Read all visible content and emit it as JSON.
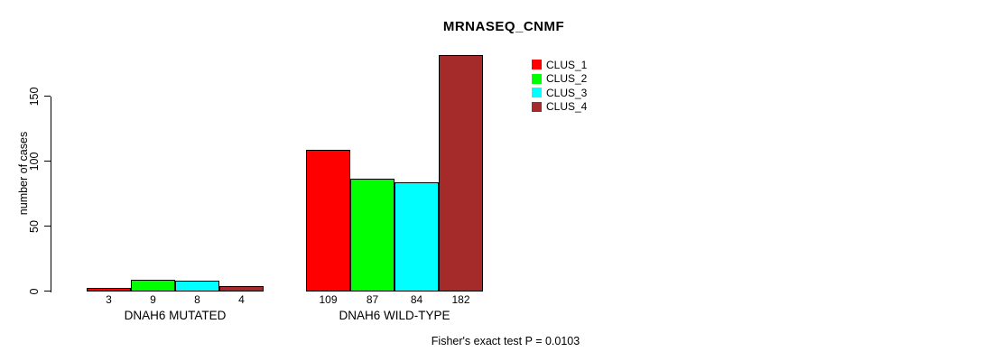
{
  "chart_data": {
    "type": "bar",
    "title": "MRNASEQ_CNMF",
    "xlabel": "",
    "ylabel": "number of cases",
    "ylim": [
      0,
      182
    ],
    "yticks": [
      0,
      50,
      100,
      150
    ],
    "grid": false,
    "legend_position": "top-right",
    "categories": [
      "DNAH6 MUTATED",
      "DNAH6 WILD-TYPE"
    ],
    "series": [
      {
        "name": "CLUS_1",
        "color": "#FF0000",
        "values": [
          3,
          109
        ]
      },
      {
        "name": "CLUS_2",
        "color": "#00FF00",
        "values": [
          9,
          87
        ]
      },
      {
        "name": "CLUS_3",
        "color": "#00FFFF",
        "values": [
          8,
          84
        ]
      },
      {
        "name": "CLUS_4",
        "color": "#A52A2A",
        "values": [
          4,
          182
        ]
      }
    ],
    "bar_value_labels": [
      [
        "3",
        "9",
        "8",
        "4"
      ],
      [
        "109",
        "87",
        "84",
        "182"
      ]
    ],
    "annotation": "Fisher's exact test P = 0.0103"
  },
  "colors": {
    "background": "#FFFFFF",
    "axis": "#000000",
    "text": "#000000",
    "bar_border": "#000000"
  }
}
